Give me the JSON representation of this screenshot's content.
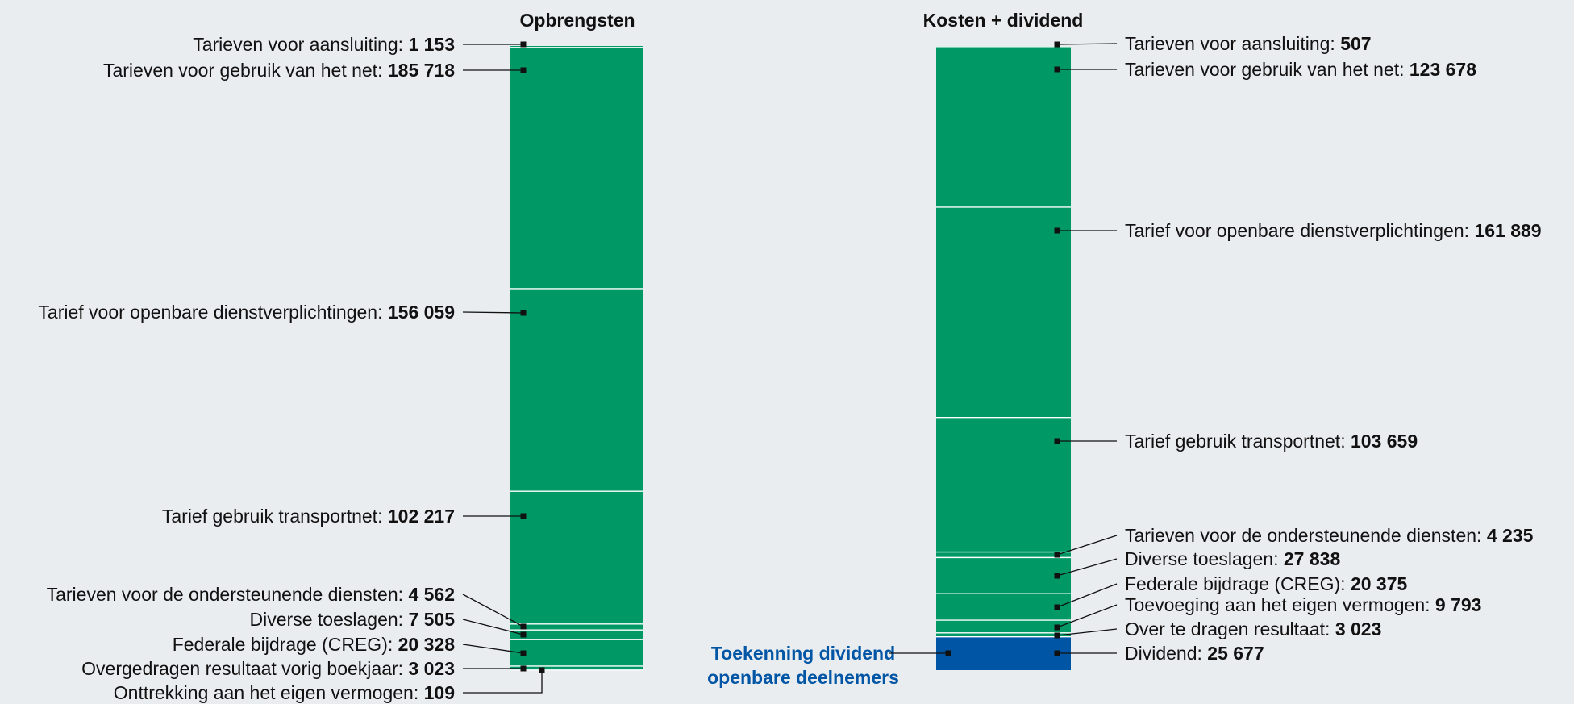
{
  "chart_data": {
    "type": "stacked_bar",
    "colors": {
      "segment": "#009966",
      "dividend": "#0055a5",
      "separator": "#ffffff",
      "text": "#111111"
    },
    "annotation": {
      "line1": "Toekenning dividend",
      "line2": "openbare deelnemers",
      "color": "#0055a5"
    },
    "bars": [
      {
        "title": "Opbrengsten",
        "segments": [
          {
            "label": "Tarieven voor aansluiting: ",
            "value": 1153,
            "value_text": "1 153"
          },
          {
            "label": "Tarieven voor gebruik van het net: ",
            "value": 185718,
            "value_text": "185 718"
          },
          {
            "label": "Tarief voor openbare dienstverplichtingen: ",
            "value": 156059,
            "value_text": "156 059"
          },
          {
            "label": "Tarief gebruik transportnet: ",
            "value": 102217,
            "value_text": "102 217"
          },
          {
            "label": "Tarieven voor de ondersteunende diensten: ",
            "value": 4562,
            "value_text": "4 562"
          },
          {
            "label": "Diverse toeslagen: ",
            "value": 7505,
            "value_text": "7 505"
          },
          {
            "label": "Federale bijdrage (CREG): ",
            "value": 20328,
            "value_text": "20 328"
          },
          {
            "label": "Overgedragen resultaat vorig boekjaar: ",
            "value": 3023,
            "value_text": "3 023"
          },
          {
            "label": "Onttrekking aan het eigen vermogen: ",
            "value": 109,
            "value_text": "109"
          }
        ]
      },
      {
        "title": "Kosten + dividend",
        "segments": [
          {
            "label": "Tarieven voor aansluiting: ",
            "value": 507,
            "value_text": "507"
          },
          {
            "label": "Tarieven voor gebruik van het net: ",
            "value": 123678,
            "value_text": "123 678"
          },
          {
            "label": "Tarief voor openbare dienstverplichtingen: ",
            "value": 161889,
            "value_text": "161 889"
          },
          {
            "label": "Tarief gebruik transportnet: ",
            "value": 103659,
            "value_text": "103 659"
          },
          {
            "label": "Tarieven voor de ondersteunende diensten: ",
            "value": 4235,
            "value_text": "4 235"
          },
          {
            "label": "Diverse toeslagen: ",
            "value": 27838,
            "value_text": "27 838"
          },
          {
            "label": "Federale bijdrage (CREG): ",
            "value": 20375,
            "value_text": "20 375"
          },
          {
            "label": "Toevoeging aan het eigen vermogen: ",
            "value": 9793,
            "value_text": "9 793"
          },
          {
            "label": "Over te dragen resultaat: ",
            "value": 3023,
            "value_text": "3 023"
          },
          {
            "label": "Dividend: ",
            "value": 25677,
            "value_text": "25 677",
            "highlight": true
          }
        ]
      }
    ]
  }
}
